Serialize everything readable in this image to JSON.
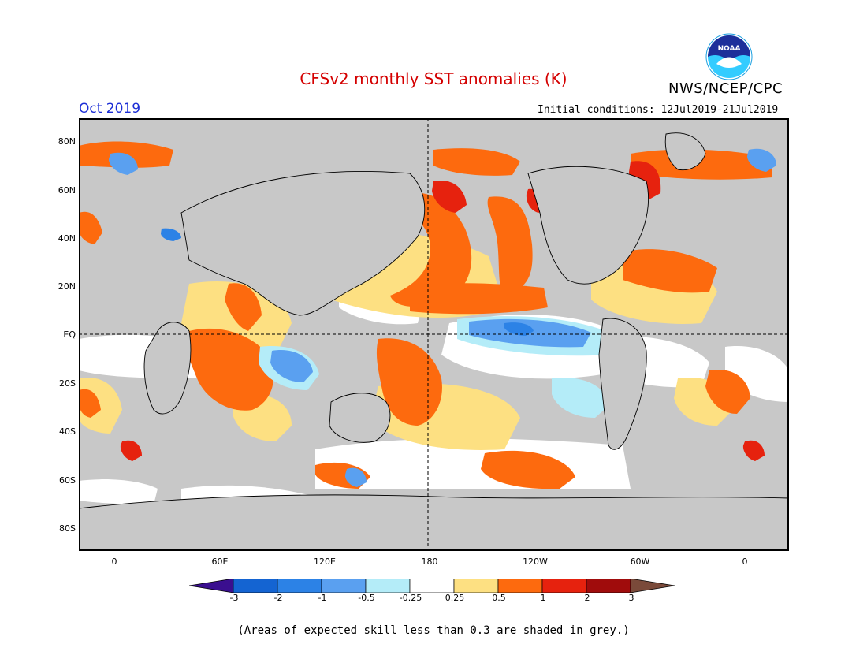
{
  "header": {
    "title": "CFSv2 monthly SST anomalies (K)",
    "agency": "NWS/NCEP/CPC",
    "period": "Oct 2019",
    "initial_conditions": "Initial conditions: 12Jul2019-21Jul2019",
    "logo_text": "NOAA"
  },
  "map": {
    "projection": "cylindrical equidistant, centered 180",
    "lat_labels": [
      "80N",
      "60N",
      "40N",
      "20N",
      "EQ",
      "20S",
      "40S",
      "60S",
      "80S"
    ],
    "lon_labels": [
      "0",
      "60E",
      "120E",
      "180",
      "120W",
      "60W",
      "0"
    ],
    "reference_lines": [
      "equator",
      "dateline"
    ]
  },
  "colorbar": {
    "ticks": [
      "-3",
      "-2",
      "-1",
      "-0.5",
      "-0.25",
      "0.25",
      "0.5",
      "1",
      "2",
      "3"
    ],
    "colors": [
      "#3a0f8f",
      "#1464d2",
      "#2c82e6",
      "#5aa0f0",
      "#b4ecf8",
      "#ffffff",
      "#fde082",
      "#fd6a0e",
      "#e6220e",
      "#a00c0c",
      "#7a4a3a"
    ]
  },
  "note": "(Areas of expected skill less than 0.3 are shaded in grey.)"
}
